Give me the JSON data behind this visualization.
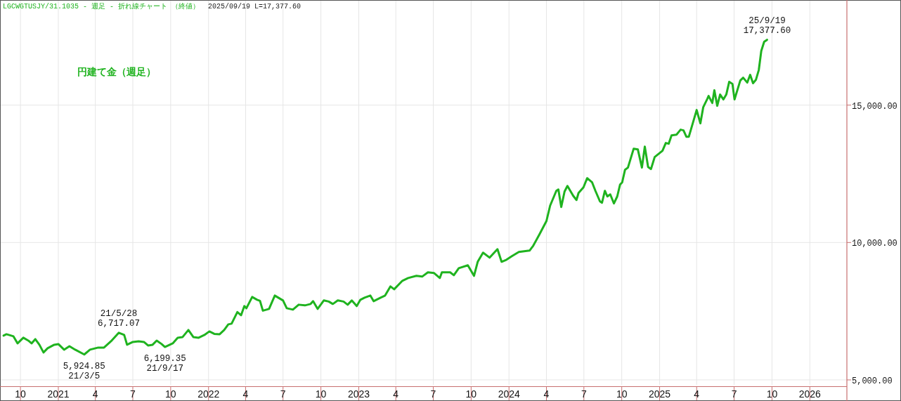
{
  "chart_data": {
    "type": "line",
    "title": "円建て金（週足）",
    "subtitle": "LGCWGTUSJY/31.1035 - 週足 - 折れ線チャート （終値）",
    "annotations": [
      "2025/09/19 L=17,377.60",
      {
        "text": "21/5/28\n6,717.07",
        "x": "2021-05-28",
        "y": 6717.07
      },
      {
        "text": "5,924.85\n21/3/5",
        "x": "2021-03-05",
        "y": 5924.85
      },
      {
        "text": "6,199.35\n21/9/17",
        "x": "2021-09-17",
        "y": 6199.35
      },
      {
        "text": "25/9/19\n17,377.60",
        "x": "2025-09-19",
        "y": 17377.6
      }
    ],
    "x": [
      "2020-08-21",
      "2020-08-28",
      "2020-09-14",
      "2020-09-24",
      "2020-10-08",
      "2020-10-20",
      "2020-10-28",
      "2020-11-06",
      "2020-11-16",
      "2020-11-26",
      "2020-12-06",
      "2020-12-22",
      "2021-01-01",
      "2021-01-15",
      "2021-01-28",
      "2021-02-11",
      "2021-03-05",
      "2021-03-19",
      "2021-04-08",
      "2021-04-22",
      "2021-05-09",
      "2021-05-28",
      "2021-06-10",
      "2021-06-17",
      "2021-07-01",
      "2021-07-15",
      "2021-07-28",
      "2021-08-07",
      "2021-08-18",
      "2021-08-28",
      "2021-09-09",
      "2021-09-17",
      "2021-10-06",
      "2021-10-18",
      "2021-10-30",
      "2021-11-13",
      "2021-11-25",
      "2021-12-08",
      "2021-12-22",
      "2022-01-03",
      "2022-01-15",
      "2022-01-28",
      "2022-02-08",
      "2022-02-18",
      "2022-02-26",
      "2022-03-12",
      "2022-03-21",
      "2022-03-29",
      "2022-04-03",
      "2022-04-17",
      "2022-04-29",
      "2022-05-06",
      "2022-05-13",
      "2022-05-28",
      "2022-06-11",
      "2022-07-01",
      "2022-07-10",
      "2022-07-25",
      "2022-08-08",
      "2022-08-23",
      "2022-09-06",
      "2022-09-12",
      "2022-09-23",
      "2022-10-08",
      "2022-10-20",
      "2022-10-30",
      "2022-11-11",
      "2022-11-25",
      "2022-12-05",
      "2022-12-15",
      "2022-12-27",
      "2023-01-05",
      "2023-01-15",
      "2023-01-29",
      "2023-02-06",
      "2023-02-23",
      "2023-03-06",
      "2023-03-19",
      "2023-03-28",
      "2023-04-17",
      "2023-05-01",
      "2023-05-21",
      "2023-06-04",
      "2023-06-18",
      "2023-07-03",
      "2023-07-17",
      "2023-07-22",
      "2023-08-11",
      "2023-08-20",
      "2023-09-01",
      "2023-09-23",
      "2023-10-08",
      "2023-10-17",
      "2023-10-30",
      "2023-11-15",
      "2023-12-04",
      "2023-12-14",
      "2023-12-26",
      "2024-01-08",
      "2024-01-25",
      "2024-02-20",
      "2024-02-29",
      "2024-03-15",
      "2024-04-01",
      "2024-04-10",
      "2024-04-25",
      "2024-04-30",
      "2024-05-07",
      "2024-05-15",
      "2024-05-22",
      "2024-06-05",
      "2024-06-13",
      "2024-06-18",
      "2024-06-30",
      "2024-07-09",
      "2024-07-21",
      "2024-07-29",
      "2024-08-09",
      "2024-08-14",
      "2024-08-21",
      "2024-08-27",
      "2024-09-03",
      "2024-09-12",
      "2024-09-20",
      "2024-09-27",
      "2024-10-02",
      "2024-10-09",
      "2024-10-16",
      "2024-10-30",
      "2024-11-09",
      "2024-11-19",
      "2024-11-26",
      "2024-12-04",
      "2024-12-11",
      "2024-12-20",
      "2025-01-08",
      "2025-01-16",
      "2025-01-23",
      "2025-01-30",
      "2025-02-11",
      "2025-02-21",
      "2025-02-28",
      "2025-03-07",
      "2025-03-13",
      "2025-03-22",
      "2025-04-01",
      "2025-04-10",
      "2025-04-17",
      "2025-04-27",
      "2025-04-30",
      "2025-05-09",
      "2025-05-14",
      "2025-05-21",
      "2025-05-28",
      "2025-06-05",
      "2025-06-12",
      "2025-06-19",
      "2025-06-27",
      "2025-07-02",
      "2025-07-16",
      "2025-07-23",
      "2025-08-02",
      "2025-08-09",
      "2025-08-16",
      "2025-08-23",
      "2025-08-30",
      "2025-09-05",
      "2025-09-12",
      "2025-09-19"
    ],
    "series": [
      {
        "color": "#1fb31f",
        "values": [
          6612,
          6663,
          6586,
          6330,
          6535,
          6432,
          6330,
          6484,
          6279,
          5998,
          6151,
          6279,
          6305,
          6100,
          6228,
          6100,
          5924.85,
          6100,
          6177,
          6177,
          6407,
          6717.07,
          6637,
          6279,
          6381,
          6407,
          6381,
          6253,
          6279,
          6432,
          6305,
          6199.35,
          6330,
          6535,
          6560,
          6816,
          6560,
          6535,
          6637,
          6765,
          6676,
          6663,
          6816,
          7021,
          7046,
          7468,
          7353,
          7686,
          7609,
          8018,
          7916,
          7878,
          7520,
          7584,
          8070,
          7891,
          7609,
          7558,
          7737,
          7712,
          7763,
          7865,
          7584,
          7891,
          7852,
          7763,
          7891,
          7852,
          7737,
          7891,
          7686,
          7916,
          7993,
          8070,
          7865,
          7993,
          8070,
          8402,
          8300,
          8607,
          8709,
          8786,
          8760,
          8914,
          8888,
          8709,
          8914,
          8914,
          8811,
          9067,
          9170,
          8786,
          9297,
          9630,
          9450,
          9758,
          9297,
          9374,
          9502,
          9656,
          9707,
          9886,
          10295,
          10781,
          11344,
          11881,
          11932,
          11293,
          11855,
          12060,
          11702,
          11548,
          11804,
          12009,
          12342,
          12188,
          11881,
          11497,
          11446,
          11881,
          11676,
          11753,
          11421,
          11676,
          12111,
          12188,
          12649,
          12726,
          13416,
          13390,
          12726,
          13493,
          12751,
          12674,
          13109,
          13339,
          13621,
          13595,
          13902,
          13927,
          14107,
          14081,
          13851,
          13851,
          14311,
          14823,
          14337,
          14925,
          15232,
          15334,
          15079,
          15539,
          14976,
          15386,
          15207,
          15386,
          15846,
          15769,
          15207,
          15897,
          15999,
          15820,
          16102,
          15795,
          15923,
          16281,
          16972,
          17304,
          17377.6
        ]
      }
    ],
    "xlim": [
      "2020-08-14",
      "2026-04-01"
    ],
    "ylim": [
      4820,
      18800
    ],
    "xticks": [
      {
        "value": "2020-10-01",
        "label": "10"
      },
      {
        "value": "2021-01-01",
        "label": "2021"
      },
      {
        "value": "2021-04-01",
        "label": "4"
      },
      {
        "value": "2021-07-01",
        "label": "7"
      },
      {
        "value": "2021-10-01",
        "label": "10"
      },
      {
        "value": "2022-01-01",
        "label": "2022"
      },
      {
        "value": "2022-04-01",
        "label": "4"
      },
      {
        "value": "2022-07-01",
        "label": "7"
      },
      {
        "value": "2022-10-01",
        "label": "10"
      },
      {
        "value": "2023-01-01",
        "label": "2023"
      },
      {
        "value": "2023-04-01",
        "label": "4"
      },
      {
        "value": "2023-07-01",
        "label": "7"
      },
      {
        "value": "2023-10-01",
        "label": "10"
      },
      {
        "value": "2024-01-01",
        "label": "2024"
      },
      {
        "value": "2024-04-01",
        "label": "4"
      },
      {
        "value": "2024-07-01",
        "label": "7"
      },
      {
        "value": "2024-10-01",
        "label": "10"
      },
      {
        "value": "2025-01-01",
        "label": "2025"
      },
      {
        "value": "2025-04-01",
        "label": "4"
      },
      {
        "value": "2025-07-01",
        "label": "7"
      },
      {
        "value": "2025-10-01",
        "label": "10"
      },
      {
        "value": "2026-01-01",
        "label": "2026"
      }
    ],
    "yticks": [
      {
        "value": 5000,
        "label": "5,000.00"
      },
      {
        "value": 10000,
        "label": "10,000.00"
      },
      {
        "value": 15000,
        "label": "15,000.00"
      }
    ],
    "grid": true
  }
}
